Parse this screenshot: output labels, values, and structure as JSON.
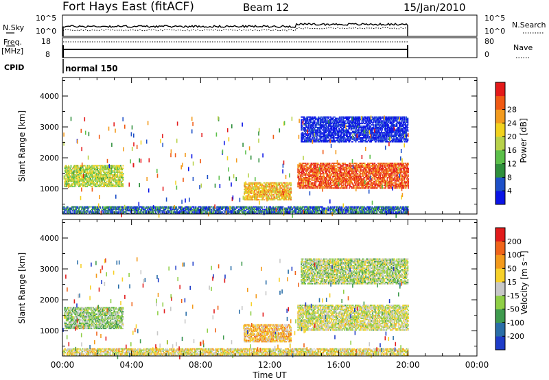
{
  "header": {
    "station": "Fort Hays East (fitACF)",
    "beam": "Beam 12",
    "date": "15/Jan/2010"
  },
  "top_panels": {
    "nsky_label": "N.Sky",
    "nsky_tick_top": "10^5",
    "nsky_tick_bottom": "10^0",
    "nsky_right_tick_top": "10^5",
    "nsky_right_tick_bottom": "10^0",
    "nsearch_label": "N.Search",
    "freq_label": "Freq.",
    "freq_unit": "[MHz]",
    "freq_tick_top": "18",
    "freq_tick_bottom": "8",
    "nave_tick_top": "80",
    "nave_tick_bottom": "0",
    "nave_label": "Nave",
    "cpid_label": "CPID",
    "cpid_value": "normal 150"
  },
  "chart_data": [
    {
      "type": "heatmap",
      "quantity": "Power",
      "ylabel": "Slant Range [km]",
      "ylim": [
        180,
        4600
      ],
      "yticks": [
        1000,
        2000,
        3000,
        4000
      ],
      "ytick_labels": [
        "1000",
        "2000",
        "3000",
        "4000"
      ],
      "xlim": [
        0,
        24
      ],
      "x_data_range": [
        0,
        20
      ],
      "xticks": [
        0,
        4,
        8,
        12,
        16,
        20,
        24
      ],
      "colorbar_label": "Power [dB]",
      "colorbar_ticks": [
        "4",
        "8",
        "12",
        "16",
        "20",
        "24",
        "28"
      ],
      "colors": [
        "#0a14e6",
        "#1e50c8",
        "#2f8f3c",
        "#5cc04a",
        "#b8d24a",
        "#f2d21e",
        "#f39b1e",
        "#f05a14",
        "#e41a1a"
      ],
      "regions": [
        {
          "t0": 0.1,
          "t1": 3.5,
          "r0": 1050,
          "r1": 1750,
          "level": 0.5
        },
        {
          "t0": 0.0,
          "t1": 20.0,
          "r0": 180,
          "r1": 420,
          "level": 0.2
        },
        {
          "t0": 10.5,
          "t1": 13.2,
          "r0": 620,
          "r1": 1200,
          "level": 0.65
        },
        {
          "t0": 13.6,
          "t1": 20.0,
          "r0": 1000,
          "r1": 1800,
          "level": 0.85
        },
        {
          "t0": 13.8,
          "t1": 20.0,
          "r0": 2500,
          "r1": 3300,
          "level": 0.05
        }
      ]
    },
    {
      "type": "heatmap",
      "quantity": "Velocity",
      "ylabel": "Slant Range [km]",
      "ylim": [
        180,
        4600
      ],
      "yticks": [
        1000,
        2000,
        3000,
        4000
      ],
      "ytick_labels": [
        "1000",
        "2000",
        "3000",
        "4000"
      ],
      "xlim": [
        0,
        24
      ],
      "x_data_range": [
        0,
        20
      ],
      "xticks": [
        0,
        4,
        8,
        12,
        16,
        20,
        24
      ],
      "xtick_labels": [
        "00:00",
        "04:00",
        "08:00",
        "12:00",
        "16:00",
        "20:00",
        "00:00"
      ],
      "xlabel": "Time UT",
      "colorbar_label": "Velocity [m s⁻¹]",
      "colorbar_ticks": [
        "200",
        "100",
        "50",
        "15",
        "-15",
        "-50",
        "-100",
        "-200"
      ],
      "colors": [
        "#1e3cc8",
        "#2a6ea8",
        "#3f9b4e",
        "#8fcf46",
        "#c8c8c8",
        "#f7d12a",
        "#f39a1c",
        "#f0641a",
        "#e21b1b"
      ],
      "regions": [
        {
          "t0": 0.1,
          "t1": 3.5,
          "r0": 1050,
          "r1": 1750,
          "level": 0.4
        },
        {
          "t0": 0.0,
          "t1": 20.0,
          "r0": 180,
          "r1": 420,
          "level": 0.55
        },
        {
          "t0": 10.5,
          "t1": 13.2,
          "r0": 620,
          "r1": 1200,
          "level": 0.65
        },
        {
          "t0": 13.6,
          "t1": 20.0,
          "r0": 1000,
          "r1": 1800,
          "level": 0.5
        },
        {
          "t0": 13.8,
          "t1": 20.0,
          "r0": 2500,
          "r1": 3300,
          "level": 0.45
        }
      ]
    }
  ]
}
